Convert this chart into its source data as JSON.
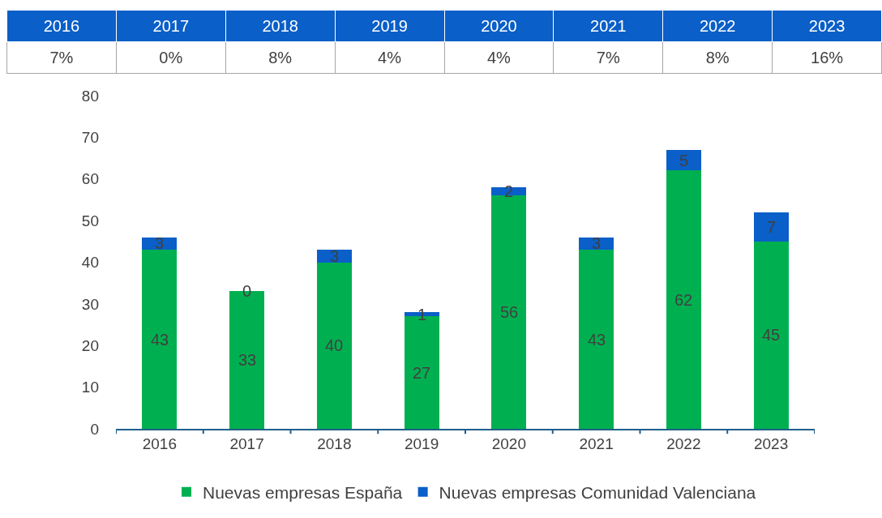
{
  "chart_data": {
    "type": "bar",
    "stacked": true,
    "data_labels": true,
    "categories": [
      "2016",
      "2017",
      "2018",
      "2019",
      "2020",
      "2021",
      "2022",
      "2023"
    ],
    "series": [
      {
        "name": "Nuevas empresas España",
        "color": "#00b050",
        "values": [
          43,
          33,
          40,
          27,
          56,
          43,
          62,
          45
        ]
      },
      {
        "name": "Nuevas empresas Comunidad Valenciana",
        "color": "#0a5fc8",
        "values": [
          3,
          0,
          3,
          1,
          2,
          3,
          5,
          7
        ]
      }
    ],
    "annotations": [
      "7%",
      "0%",
      "8%",
      "4%",
      "4%",
      "7%",
      "8%",
      "16%"
    ],
    "ylim": [
      0,
      80
    ],
    "yticks": [
      0,
      10,
      20,
      30,
      40,
      50,
      60,
      70,
      80
    ],
    "grid": false,
    "legend": "bottom"
  }
}
